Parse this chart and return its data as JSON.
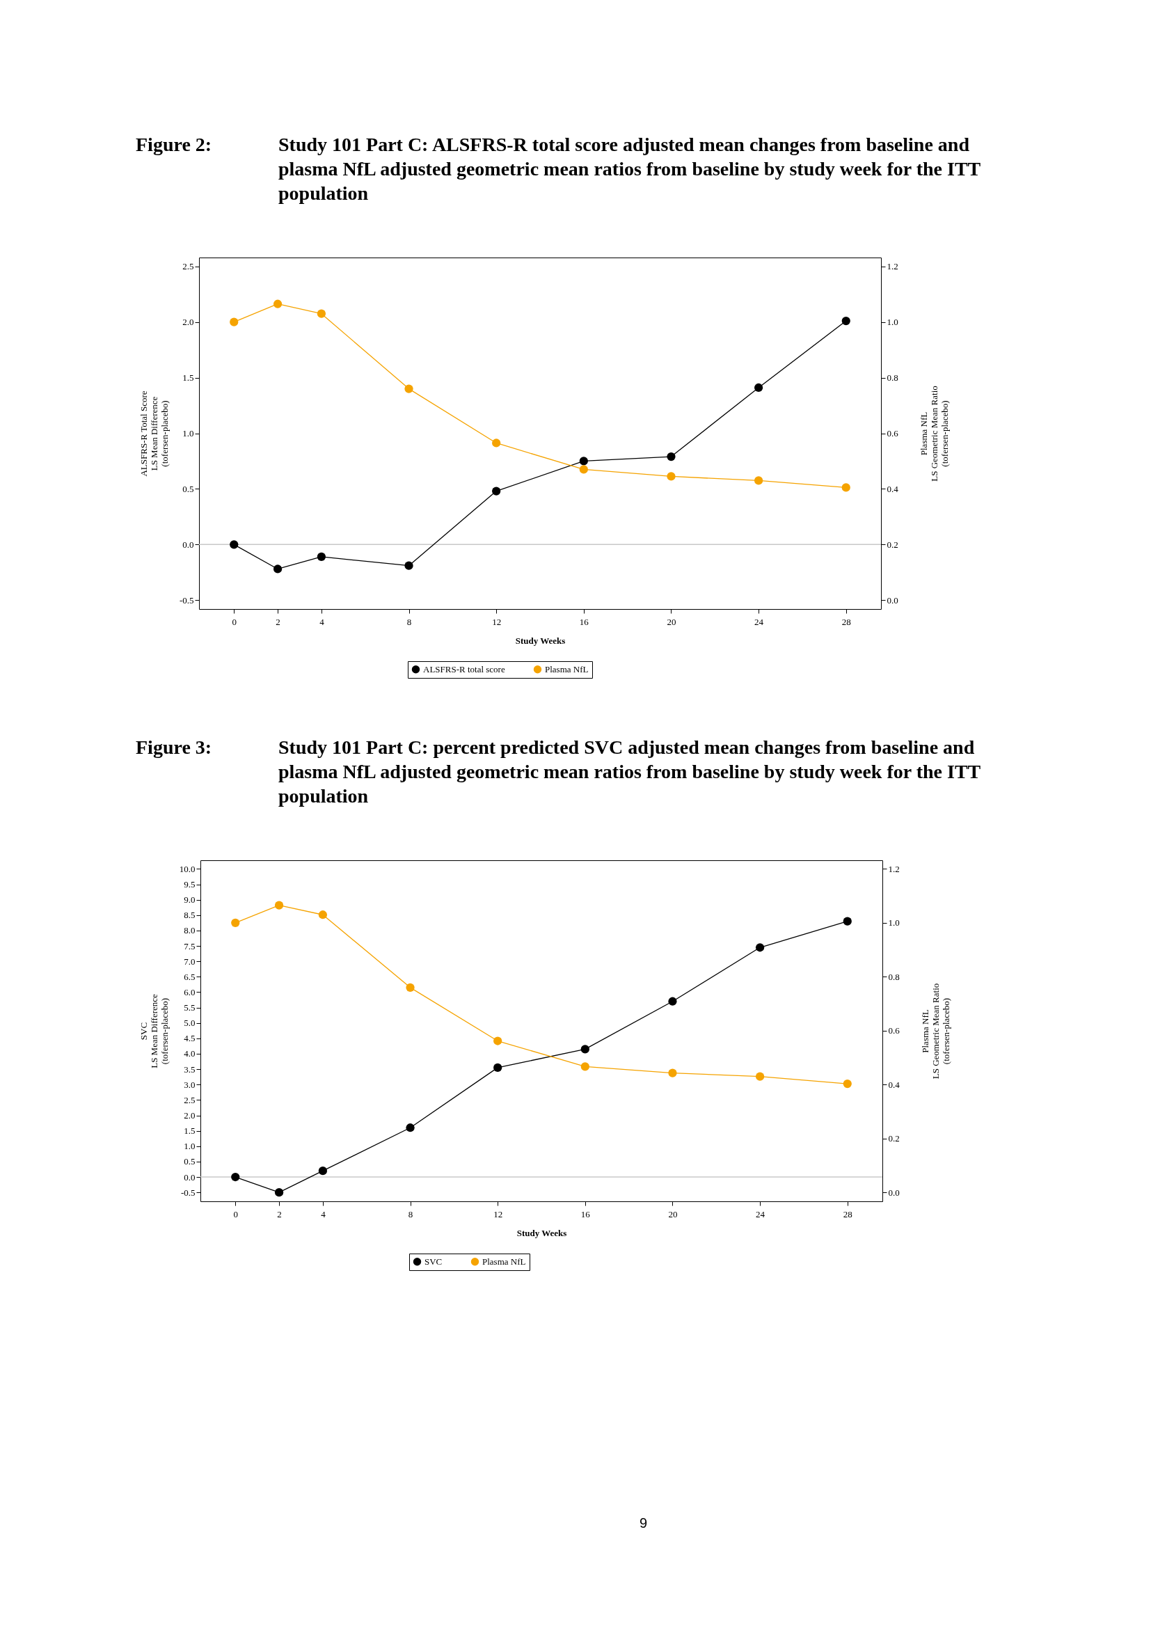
{
  "chart_data": [
    {
      "type": "line",
      "title": "Figure 2:",
      "subtitle": "Study 101 Part C: ALSFRS-R total score adjusted mean changes from baseline and plasma NfL adjusted geometric mean ratios from baseline by study week for the ITT population",
      "xlabel": "Study Weeks",
      "ylabel": "ALSFRS-R Total Score\nLS Mean Difference\n(tofersen-placebo)",
      "y2label": "Plasma NfL\nLS Geometric Mean Ratio\n(tofersen-placebo)",
      "x": [
        0,
        2,
        4,
        8,
        12,
        16,
        20,
        24,
        28
      ],
      "series": [
        {
          "name": "ALSFRS-R total score",
          "color": "#000000",
          "values": [
            0,
            -0.22,
            -0.11,
            -0.19,
            0.48,
            0.75,
            0.79,
            1.41,
            2.01
          ]
        },
        {
          "name": "Plasma NfL",
          "color": "#f5a300",
          "axis": "y2",
          "values": [
            1.0,
            1.065,
            1.03,
            0.76,
            0.565,
            0.47,
            0.445,
            0.43,
            0.405
          ]
        }
      ],
      "xlim": [
        -1.6,
        29.6
      ],
      "xticks": [
        0,
        2,
        4,
        8,
        12,
        16,
        20,
        24,
        28
      ],
      "ylim": [
        -0.58,
        2.58
      ],
      "yticks": [
        {
          "value": -0.5,
          "label": "-0.5"
        },
        {
          "value": 0,
          "label": "0.0"
        },
        {
          "value": 0.5,
          "label": "0.5"
        },
        {
          "value": 1,
          "label": "1.0"
        },
        {
          "value": 1.5,
          "label": "1.5"
        },
        {
          "value": 2,
          "label": "2.0"
        },
        {
          "value": 2.5,
          "label": "2.5"
        }
      ],
      "y2lim": [
        -0.032,
        1.232
      ],
      "y2ticks": [
        {
          "value": 0,
          "label": "0.0"
        },
        {
          "value": 0.2,
          "label": "0.2"
        },
        {
          "value": 0.4,
          "label": "0.4"
        },
        {
          "value": 0.6,
          "label": "0.6"
        },
        {
          "value": 0.8,
          "label": "0.8"
        },
        {
          "value": 1,
          "label": "1.0"
        },
        {
          "value": 1.2,
          "label": "1.2"
        }
      ],
      "ref_lines": [
        {
          "axis": "y",
          "value": 0,
          "color": "#c8c8c8"
        }
      ],
      "grid": false,
      "legend": "bottom",
      "marker": "circle",
      "line_style": "solid"
    },
    {
      "type": "line",
      "title": "Figure 3:",
      "subtitle": "Study 101 Part C: percent predicted SVC adjusted mean changes from baseline and plasma NfL adjusted geometric mean ratios from baseline by study week for the ITT population",
      "xlabel": "Study Weeks",
      "ylabel": "SVC\nLS Mean Difference\n(tofersen-placebo)",
      "y2label": "Plasma NfL\nLS Geometric Mean Ratio\n(tofersen-placebo)",
      "x": [
        0,
        2,
        4,
        8,
        12,
        16,
        20,
        24,
        28
      ],
      "series": [
        {
          "name": "SVC",
          "color": "#000000",
          "values": [
            0,
            -0.5,
            0.2,
            1.6,
            3.55,
            4.15,
            5.7,
            7.45,
            8.3
          ]
        },
        {
          "name": "Plasma NfL",
          "color": "#f5a300",
          "axis": "y2",
          "values": [
            1.0,
            1.065,
            1.03,
            0.76,
            0.562,
            0.467,
            0.443,
            0.43,
            0.403
          ]
        }
      ],
      "xlim": [
        -1.6,
        29.6
      ],
      "xticks": [
        0,
        2,
        4,
        8,
        12,
        16,
        20,
        24,
        28
      ],
      "ylim": [
        -0.79,
        10.28
      ],
      "yticks": [
        {
          "value": -0.5,
          "label": "-0.5"
        },
        {
          "value": 0,
          "label": "0.0"
        },
        {
          "value": 0.5,
          "label": "0.5"
        },
        {
          "value": 1,
          "label": "1.0"
        },
        {
          "value": 1.5,
          "label": "1.5"
        },
        {
          "value": 2,
          "label": "2.0"
        },
        {
          "value": 2.5,
          "label": "2.5"
        },
        {
          "value": 3,
          "label": "3.0"
        },
        {
          "value": 3.5,
          "label": "3.5"
        },
        {
          "value": 4,
          "label": "4.0"
        },
        {
          "value": 4.5,
          "label": "4.5"
        },
        {
          "value": 5,
          "label": "5.0"
        },
        {
          "value": 5.5,
          "label": "5.5"
        },
        {
          "value": 6,
          "label": "6.0"
        },
        {
          "value": 6.5,
          "label": "6.5"
        },
        {
          "value": 7,
          "label": "7.0"
        },
        {
          "value": 7.5,
          "label": "7.5"
        },
        {
          "value": 8,
          "label": "8.0"
        },
        {
          "value": 8.5,
          "label": "8.5"
        },
        {
          "value": 9,
          "label": "9.0"
        },
        {
          "value": 9.5,
          "label": "9.5"
        },
        {
          "value": 10,
          "label": "10.0"
        }
      ],
      "y2lim": [
        -0.033,
        1.232
      ],
      "y2ticks": [
        {
          "value": 0,
          "label": "0.0"
        },
        {
          "value": 0.2,
          "label": "0.2"
        },
        {
          "value": 0.4,
          "label": "0.4"
        },
        {
          "value": 0.6,
          "label": "0.6"
        },
        {
          "value": 0.8,
          "label": "0.8"
        },
        {
          "value": 1,
          "label": "1.0"
        },
        {
          "value": 1.2,
          "label": "1.2"
        }
      ],
      "ref_lines": [
        {
          "axis": "y",
          "value": 0,
          "color": "#c8c8c8"
        }
      ],
      "annotations": [
        "9"
      ],
      "grid": false,
      "legend": "bottom",
      "marker": "circle",
      "line_style": "solid"
    }
  ]
}
